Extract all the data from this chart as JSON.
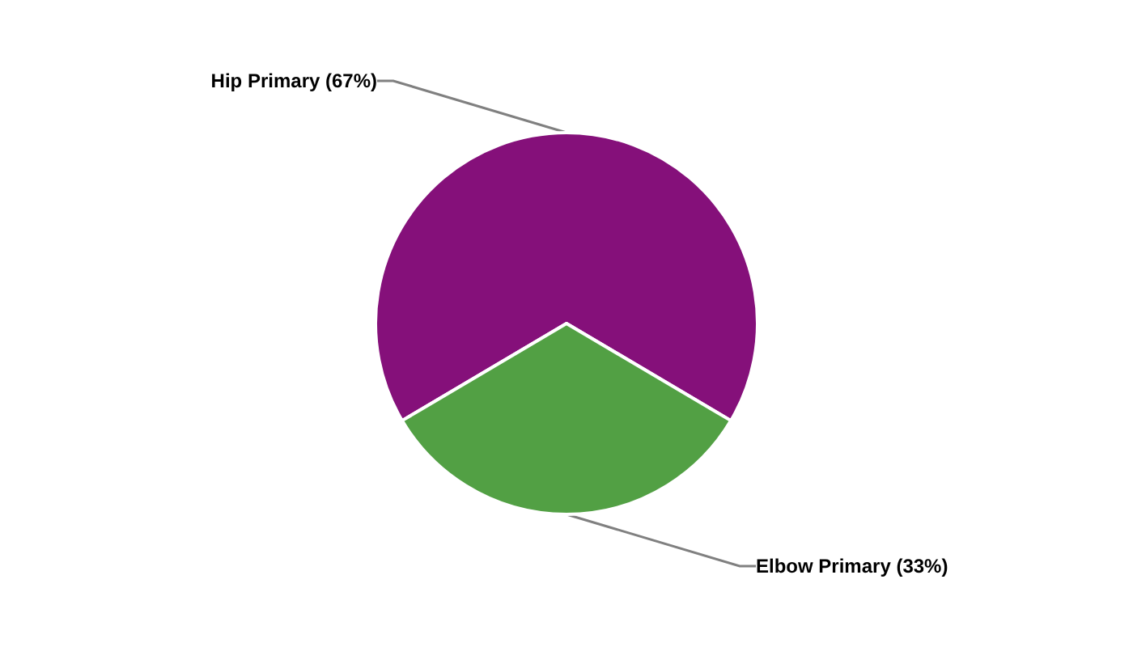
{
  "chart_data": {
    "type": "pie",
    "categories": [
      "Hip Primary",
      "Elbow Primary"
    ],
    "values": [
      67,
      33
    ],
    "colors": [
      "#85107a",
      "#52a044"
    ],
    "value_labels": [
      "(67%)",
      "(33%)"
    ]
  }
}
